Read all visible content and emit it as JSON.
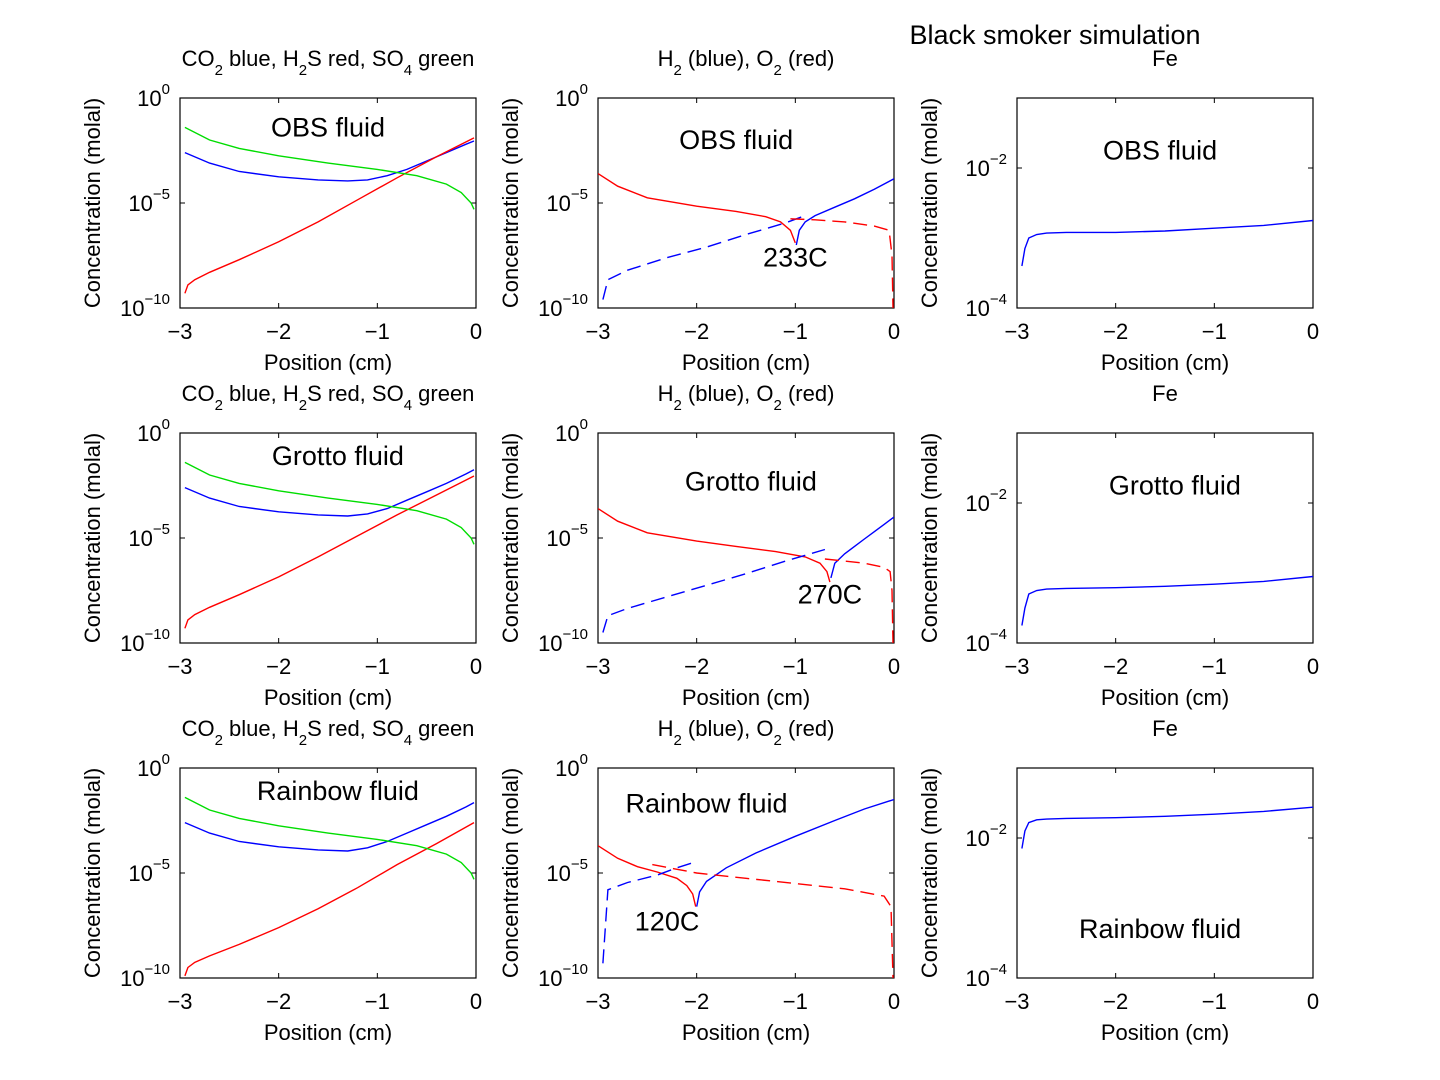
{
  "suptitle": "Black smoker simulation",
  "colors": {
    "blue": "#0000ff",
    "red": "#ff0000",
    "green": "#00dd00"
  },
  "chart_data": [
    {
      "type": "line",
      "row": 0,
      "col": 0,
      "title": [
        {
          "t": "CO"
        },
        {
          "t": "2",
          "sub": true
        },
        {
          "t": " blue, H"
        },
        {
          "t": "2",
          "sub": true
        },
        {
          "t": "S red, SO"
        },
        {
          "t": "4",
          "sub": true
        },
        {
          "t": " green"
        }
      ],
      "xlabel": "Position (cm)",
      "ylabel": "Concentration (molal)",
      "xlim": [
        -3,
        0
      ],
      "xticks": [
        -3,
        -2,
        -1,
        0
      ],
      "xtick_labels": [
        "−3",
        "−2",
        "−1",
        "0"
      ],
      "yscale": "log",
      "ylim_exp": [
        -10,
        0
      ],
      "ytick_exps": [
        -10,
        -5,
        0
      ],
      "annotation": {
        "text": "OBS fluid",
        "x": -1.5,
        "y_exp": -1.4
      },
      "series": [
        {
          "color": "blue",
          "dash": false,
          "x": [
            -2.95,
            -2.7,
            -2.4,
            -2.0,
            -1.6,
            -1.3,
            -1.1,
            -0.9,
            -0.7,
            -0.5,
            -0.3,
            -0.1,
            -0.02
          ],
          "y_exp": [
            -2.6,
            -3.1,
            -3.5,
            -3.75,
            -3.9,
            -3.95,
            -3.9,
            -3.7,
            -3.4,
            -3.0,
            -2.6,
            -2.2,
            -2.05
          ]
        },
        {
          "color": "red",
          "dash": false,
          "x": [
            -2.95,
            -2.92,
            -2.85,
            -2.7,
            -2.4,
            -2.0,
            -1.6,
            -1.2,
            -0.8,
            -0.4,
            -0.02
          ],
          "y_exp": [
            -9.3,
            -8.9,
            -8.65,
            -8.3,
            -7.7,
            -6.85,
            -5.9,
            -4.85,
            -3.8,
            -2.8,
            -1.9
          ]
        },
        {
          "color": "green",
          "dash": false,
          "x": [
            -2.95,
            -2.7,
            -2.4,
            -2.0,
            -1.5,
            -1.0,
            -0.6,
            -0.3,
            -0.15,
            -0.05,
            -0.02
          ],
          "y_exp": [
            -1.4,
            -2.0,
            -2.4,
            -2.75,
            -3.1,
            -3.4,
            -3.7,
            -4.1,
            -4.5,
            -5.0,
            -5.3
          ]
        }
      ]
    },
    {
      "type": "line",
      "row": 0,
      "col": 1,
      "title": [
        {
          "t": "H"
        },
        {
          "t": "2",
          "sub": true
        },
        {
          "t": " (blue), O"
        },
        {
          "t": "2",
          "sub": true
        },
        {
          "t": " (red)"
        }
      ],
      "xlabel": "Position (cm)",
      "ylabel": "Concentration (molal)",
      "xlim": [
        -3,
        0
      ],
      "xticks": [
        -3,
        -2,
        -1,
        0
      ],
      "xtick_labels": [
        "−3",
        "−2",
        "−1",
        "0"
      ],
      "yscale": "log",
      "ylim_exp": [
        -10,
        0
      ],
      "ytick_exps": [
        -10,
        -5,
        0
      ],
      "annotation": {
        "text": "OBS fluid",
        "x": -1.6,
        "y_exp": -2.0
      },
      "annotation2": {
        "text": "233C",
        "x": -1.0,
        "y_exp": -7.6
      },
      "series": [
        {
          "color": "red",
          "dash": false,
          "x": [
            -3.0,
            -2.8,
            -2.5,
            -2.0,
            -1.6,
            -1.3,
            -1.15,
            -1.05,
            -1.0
          ],
          "y_exp": [
            -3.6,
            -4.2,
            -4.75,
            -5.15,
            -5.4,
            -5.65,
            -5.9,
            -6.3,
            -6.9
          ]
        },
        {
          "color": "blue",
          "dash": false,
          "x": [
            -0.99,
            -0.96,
            -0.9,
            -0.8,
            -0.6,
            -0.4,
            -0.2,
            0.0
          ],
          "y_exp": [
            -7.0,
            -6.3,
            -5.9,
            -5.6,
            -5.2,
            -4.8,
            -4.35,
            -3.85
          ]
        },
        {
          "color": "blue",
          "dash": true,
          "x": [
            -2.95,
            -2.9,
            -2.7,
            -2.3,
            -1.9,
            -1.5,
            -1.1,
            -0.9
          ],
          "y_exp": [
            -9.6,
            -8.65,
            -8.2,
            -7.6,
            -7.1,
            -6.5,
            -5.95,
            -5.6
          ]
        },
        {
          "color": "red",
          "dash": true,
          "x": [
            -1.05,
            -0.8,
            -0.5,
            -0.2,
            -0.05,
            -0.02,
            -0.01
          ],
          "y_exp": [
            -5.75,
            -5.8,
            -5.9,
            -6.1,
            -6.3,
            -7.5,
            -10.0
          ]
        }
      ]
    },
    {
      "type": "line",
      "row": 0,
      "col": 2,
      "title": [
        {
          "t": "Fe"
        }
      ],
      "xlabel": "Position (cm)",
      "ylabel": "Concentration (molal)",
      "xlim": [
        -3,
        0
      ],
      "xticks": [
        -3,
        -2,
        -1,
        0
      ],
      "xtick_labels": [
        "−3",
        "−2",
        "−1",
        "0"
      ],
      "yscale": "log",
      "ylim_exp": [
        -4,
        -1
      ],
      "ytick_exps": [
        -4,
        -2
      ],
      "annotation": {
        "text": "OBS fluid",
        "x": -1.55,
        "y_exp": -1.75
      },
      "series": [
        {
          "color": "blue",
          "dash": false,
          "x": [
            -2.95,
            -2.92,
            -2.88,
            -2.8,
            -2.7,
            -2.5,
            -2.0,
            -1.5,
            -1.0,
            -0.5,
            0.0
          ],
          "y_exp": [
            -3.4,
            -3.15,
            -3.0,
            -2.95,
            -2.93,
            -2.92,
            -2.92,
            -2.9,
            -2.86,
            -2.82,
            -2.75
          ]
        }
      ]
    },
    {
      "type": "line",
      "row": 1,
      "col": 0,
      "title": [
        {
          "t": "CO"
        },
        {
          "t": "2",
          "sub": true
        },
        {
          "t": " blue, H"
        },
        {
          "t": "2",
          "sub": true
        },
        {
          "t": "S red, SO"
        },
        {
          "t": "4",
          "sub": true
        },
        {
          "t": " green"
        }
      ],
      "xlabel": "Position (cm)",
      "ylabel": "Concentration (molal)",
      "xlim": [
        -3,
        0
      ],
      "xticks": [
        -3,
        -2,
        -1,
        0
      ],
      "xtick_labels": [
        "−3",
        "−2",
        "−1",
        "0"
      ],
      "yscale": "log",
      "ylim_exp": [
        -10,
        0
      ],
      "ytick_exps": [
        -10,
        -5,
        0
      ],
      "annotation": {
        "text": "Grotto fluid",
        "x": -1.4,
        "y_exp": -1.1
      },
      "series": [
        {
          "color": "blue",
          "dash": false,
          "x": [
            -2.95,
            -2.7,
            -2.4,
            -2.0,
            -1.6,
            -1.3,
            -1.1,
            -0.9,
            -0.7,
            -0.5,
            -0.3,
            -0.1,
            -0.02
          ],
          "y_exp": [
            -2.6,
            -3.1,
            -3.5,
            -3.75,
            -3.9,
            -3.95,
            -3.85,
            -3.6,
            -3.2,
            -2.8,
            -2.4,
            -1.95,
            -1.75
          ]
        },
        {
          "color": "red",
          "dash": false,
          "x": [
            -2.95,
            -2.92,
            -2.85,
            -2.7,
            -2.4,
            -2.0,
            -1.6,
            -1.2,
            -0.8,
            -0.4,
            -0.02
          ],
          "y_exp": [
            -9.3,
            -8.9,
            -8.65,
            -8.3,
            -7.7,
            -6.85,
            -5.9,
            -4.9,
            -3.9,
            -2.95,
            -2.05
          ]
        },
        {
          "color": "green",
          "dash": false,
          "x": [
            -2.95,
            -2.7,
            -2.4,
            -2.0,
            -1.5,
            -1.0,
            -0.6,
            -0.3,
            -0.15,
            -0.05,
            -0.02
          ],
          "y_exp": [
            -1.4,
            -2.0,
            -2.4,
            -2.75,
            -3.1,
            -3.4,
            -3.7,
            -4.1,
            -4.5,
            -5.0,
            -5.3
          ]
        }
      ]
    },
    {
      "type": "line",
      "row": 1,
      "col": 1,
      "title": [
        {
          "t": "H"
        },
        {
          "t": "2",
          "sub": true
        },
        {
          "t": " (blue), O"
        },
        {
          "t": "2",
          "sub": true
        },
        {
          "t": " (red)"
        }
      ],
      "xlabel": "Position (cm)",
      "ylabel": "Concentration (molal)",
      "xlim": [
        -3,
        0
      ],
      "xticks": [
        -3,
        -2,
        -1,
        0
      ],
      "xtick_labels": [
        "−3",
        "−2",
        "−1",
        "0"
      ],
      "yscale": "log",
      "ylim_exp": [
        -10,
        0
      ],
      "ytick_exps": [
        -10,
        -5,
        0
      ],
      "annotation": {
        "text": "Grotto fluid",
        "x": -1.45,
        "y_exp": -2.3
      },
      "annotation2": {
        "text": "270C",
        "x": -0.65,
        "y_exp": -7.7
      },
      "series": [
        {
          "color": "red",
          "dash": false,
          "x": [
            -3.0,
            -2.8,
            -2.5,
            -2.0,
            -1.6,
            -1.2,
            -0.9,
            -0.75,
            -0.68,
            -0.65
          ],
          "y_exp": [
            -3.6,
            -4.2,
            -4.75,
            -5.15,
            -5.4,
            -5.65,
            -5.9,
            -6.2,
            -6.6,
            -7.1
          ]
        },
        {
          "color": "blue",
          "dash": false,
          "x": [
            -0.64,
            -0.6,
            -0.5,
            -0.4,
            -0.3,
            -0.2,
            -0.1,
            0.0
          ],
          "y_exp": [
            -6.9,
            -6.2,
            -5.75,
            -5.4,
            -5.05,
            -4.7,
            -4.35,
            -4.0
          ]
        },
        {
          "color": "blue",
          "dash": true,
          "x": [
            -2.95,
            -2.9,
            -2.7,
            -2.3,
            -1.9,
            -1.5,
            -1.1,
            -0.7
          ],
          "y_exp": [
            -9.5,
            -8.7,
            -8.35,
            -7.8,
            -7.25,
            -6.7,
            -6.1,
            -5.55
          ]
        },
        {
          "color": "red",
          "dash": true,
          "x": [
            -0.7,
            -0.5,
            -0.3,
            -0.1,
            -0.04,
            -0.02,
            -0.01
          ],
          "y_exp": [
            -6.0,
            -6.1,
            -6.2,
            -6.4,
            -6.6,
            -7.5,
            -10.0
          ]
        }
      ]
    },
    {
      "type": "line",
      "row": 1,
      "col": 2,
      "title": [
        {
          "t": "Fe"
        }
      ],
      "xlabel": "Position (cm)",
      "ylabel": "Concentration (molal)",
      "xlim": [
        -3,
        0
      ],
      "xticks": [
        -3,
        -2,
        -1,
        0
      ],
      "xtick_labels": [
        "−3",
        "−2",
        "−1",
        "0"
      ],
      "yscale": "log",
      "ylim_exp": [
        -4,
        -1
      ],
      "ytick_exps": [
        -4,
        -2
      ],
      "annotation": {
        "text": "Grotto fluid",
        "x": -1.4,
        "y_exp": -1.75
      },
      "series": [
        {
          "color": "blue",
          "dash": false,
          "x": [
            -2.95,
            -2.92,
            -2.88,
            -2.8,
            -2.7,
            -2.5,
            -2.0,
            -1.5,
            -1.0,
            -0.5,
            0.0
          ],
          "y_exp": [
            -3.75,
            -3.5,
            -3.3,
            -3.25,
            -3.23,
            -3.22,
            -3.21,
            -3.19,
            -3.16,
            -3.12,
            -3.05
          ]
        }
      ]
    },
    {
      "type": "line",
      "row": 2,
      "col": 0,
      "title": [
        {
          "t": "CO"
        },
        {
          "t": "2",
          "sub": true
        },
        {
          "t": " blue, H"
        },
        {
          "t": "2",
          "sub": true
        },
        {
          "t": "S red, SO"
        },
        {
          "t": "4",
          "sub": true
        },
        {
          "t": " green"
        }
      ],
      "xlabel": "Position (cm)",
      "ylabel": "Concentration (molal)",
      "xlim": [
        -3,
        0
      ],
      "xticks": [
        -3,
        -2,
        -1,
        0
      ],
      "xtick_labels": [
        "−3",
        "−2",
        "−1",
        "0"
      ],
      "yscale": "log",
      "ylim_exp": [
        -10,
        0
      ],
      "ytick_exps": [
        -10,
        -5,
        0
      ],
      "annotation": {
        "text": "Rainbow fluid",
        "x": -1.4,
        "y_exp": -1.1
      },
      "series": [
        {
          "color": "blue",
          "dash": false,
          "x": [
            -2.95,
            -2.7,
            -2.4,
            -2.0,
            -1.6,
            -1.3,
            -1.1,
            -0.9,
            -0.7,
            -0.5,
            -0.3,
            -0.1,
            -0.02
          ],
          "y_exp": [
            -2.6,
            -3.1,
            -3.5,
            -3.75,
            -3.9,
            -3.95,
            -3.8,
            -3.5,
            -3.1,
            -2.7,
            -2.3,
            -1.85,
            -1.65
          ]
        },
        {
          "color": "red",
          "dash": false,
          "x": [
            -2.95,
            -2.92,
            -2.85,
            -2.7,
            -2.4,
            -2.0,
            -1.6,
            -1.2,
            -0.8,
            -0.4,
            -0.02
          ],
          "y_exp": [
            -9.9,
            -9.5,
            -9.25,
            -8.95,
            -8.4,
            -7.6,
            -6.7,
            -5.7,
            -4.6,
            -3.6,
            -2.6
          ]
        },
        {
          "color": "green",
          "dash": false,
          "x": [
            -2.95,
            -2.7,
            -2.4,
            -2.0,
            -1.5,
            -1.0,
            -0.6,
            -0.3,
            -0.15,
            -0.05,
            -0.02
          ],
          "y_exp": [
            -1.4,
            -2.0,
            -2.4,
            -2.75,
            -3.1,
            -3.4,
            -3.7,
            -4.1,
            -4.5,
            -5.0,
            -5.3
          ]
        }
      ]
    },
    {
      "type": "line",
      "row": 2,
      "col": 1,
      "title": [
        {
          "t": "H"
        },
        {
          "t": "2",
          "sub": true
        },
        {
          "t": " (blue), O"
        },
        {
          "t": "2",
          "sub": true
        },
        {
          "t": " (red)"
        }
      ],
      "xlabel": "Position (cm)",
      "ylabel": "Concentration (molal)",
      "xlim": [
        -3,
        0
      ],
      "xticks": [
        -3,
        -2,
        -1,
        0
      ],
      "xtick_labels": [
        "−3",
        "−2",
        "−1",
        "0"
      ],
      "yscale": "log",
      "ylim_exp": [
        -10,
        0
      ],
      "ytick_exps": [
        -10,
        -5,
        0
      ],
      "annotation": {
        "text": "Rainbow fluid",
        "x": -1.9,
        "y_exp": -1.7
      },
      "annotation2": {
        "text": "120C",
        "x": -2.3,
        "y_exp": -7.3
      },
      "series": [
        {
          "color": "red",
          "dash": false,
          "x": [
            -3.0,
            -2.8,
            -2.6,
            -2.4,
            -2.2,
            -2.1,
            -2.04,
            -2.01
          ],
          "y_exp": [
            -3.7,
            -4.3,
            -4.7,
            -4.95,
            -5.25,
            -5.6,
            -6.0,
            -6.6
          ]
        },
        {
          "color": "blue",
          "dash": false,
          "x": [
            -2.0,
            -1.97,
            -1.9,
            -1.7,
            -1.4,
            -1.0,
            -0.6,
            -0.3,
            0.0
          ],
          "y_exp": [
            -6.6,
            -5.9,
            -5.4,
            -4.75,
            -4.05,
            -3.25,
            -2.5,
            -1.95,
            -1.5
          ]
        },
        {
          "color": "blue",
          "dash": true,
          "x": [
            -2.95,
            -2.9,
            -2.7,
            -2.4,
            -2.2,
            -2.0
          ],
          "y_exp": [
            -9.3,
            -5.8,
            -5.45,
            -5.1,
            -4.75,
            -4.45
          ]
        },
        {
          "color": "red",
          "dash": true,
          "x": [
            -2.45,
            -2.0,
            -1.5,
            -1.0,
            -0.5,
            -0.1,
            -0.03,
            -0.01
          ],
          "y_exp": [
            -4.6,
            -5.0,
            -5.25,
            -5.5,
            -5.75,
            -6.1,
            -6.6,
            -10.0
          ]
        }
      ]
    },
    {
      "type": "line",
      "row": 2,
      "col": 2,
      "title": [
        {
          "t": "Fe"
        }
      ],
      "xlabel": "Position (cm)",
      "ylabel": "Concentration (molal)",
      "xlim": [
        -3,
        0
      ],
      "xticks": [
        -3,
        -2,
        -1,
        0
      ],
      "xtick_labels": [
        "−3",
        "−2",
        "−1",
        "0"
      ],
      "yscale": "log",
      "ylim_exp": [
        -4,
        -1
      ],
      "ytick_exps": [
        -4,
        -2
      ],
      "annotation": {
        "text": "Rainbow fluid",
        "x": -1.55,
        "y_exp": -3.3
      },
      "series": [
        {
          "color": "blue",
          "dash": false,
          "x": [
            -2.95,
            -2.92,
            -2.88,
            -2.8,
            -2.7,
            -2.5,
            -2.0,
            -1.5,
            -1.0,
            -0.5,
            0.0
          ],
          "y_exp": [
            -2.15,
            -1.9,
            -1.78,
            -1.74,
            -1.73,
            -1.72,
            -1.71,
            -1.69,
            -1.66,
            -1.62,
            -1.56
          ]
        }
      ]
    }
  ]
}
